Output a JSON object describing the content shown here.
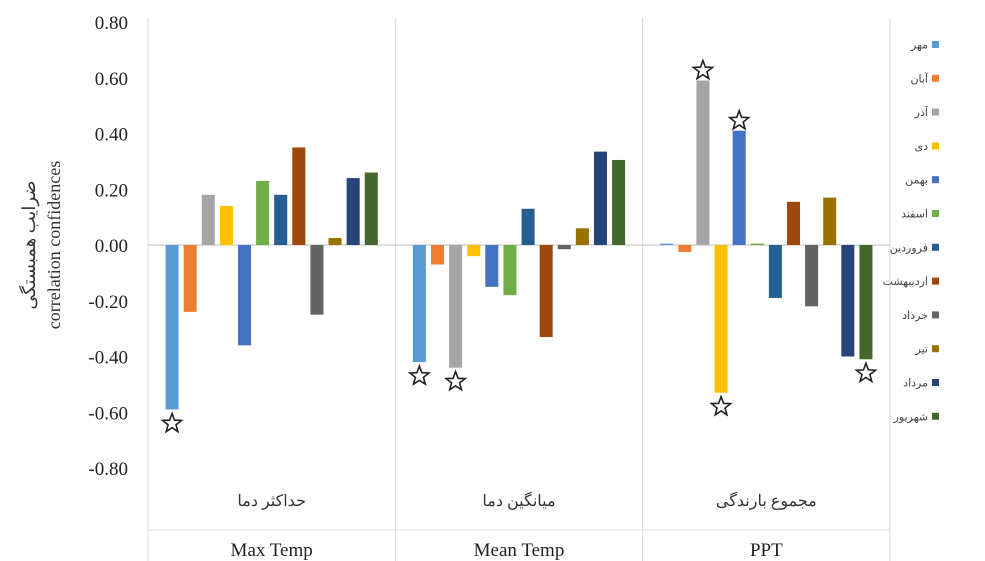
{
  "chart_data": {
    "type": "bar",
    "ylabel_fa": "ضرایب همبستگی",
    "ylabel_en": "correlation confidences",
    "ylim": [
      -0.8,
      0.8
    ],
    "yticks": [
      "0.80",
      "0.60",
      "0.40",
      "0.20",
      "0.00",
      "-0.20",
      "-0.40",
      "-0.60",
      "-0.80"
    ],
    "grid": "vertical separators",
    "legend_position": "right",
    "groups": [
      {
        "label_fa": "حداکثر دما",
        "label_en": "Max Temp"
      },
      {
        "label_fa": "میانگین دما",
        "label_en": "Mean Temp"
      },
      {
        "label_fa": "مجموع بارندگی",
        "label_en": "PPT"
      }
    ],
    "series": [
      {
        "name": "مهر",
        "color": "#5B9BD5",
        "values": [
          -0.59,
          -0.42,
          0.005
        ]
      },
      {
        "name": "آبان",
        "color": "#ED7D31",
        "values": [
          -0.24,
          -0.07,
          -0.025
        ]
      },
      {
        "name": "آذر",
        "color": "#A5A5A5",
        "values": [
          0.18,
          -0.44,
          0.59
        ]
      },
      {
        "name": "دی",
        "color": "#FFC000",
        "values": [
          0.14,
          -0.04,
          -0.53
        ]
      },
      {
        "name": "بهمن",
        "color": "#4472C4",
        "values": [
          -0.36,
          -0.15,
          0.41
        ]
      },
      {
        "name": "اسفند",
        "color": "#70AD47",
        "values": [
          0.23,
          -0.18,
          0.005
        ]
      },
      {
        "name": "فروردین",
        "color": "#255E91",
        "values": [
          0.18,
          0.13,
          -0.19
        ]
      },
      {
        "name": "اردیبهشت",
        "color": "#9E480E",
        "values": [
          0.35,
          -0.33,
          0.155
        ]
      },
      {
        "name": "خرداد",
        "color": "#636363",
        "values": [
          -0.25,
          -0.015,
          -0.22
        ]
      },
      {
        "name": "تیر",
        "color": "#997300",
        "values": [
          0.025,
          0.06,
          0.17
        ]
      },
      {
        "name": "مرداد",
        "color": "#264478",
        "values": [
          0.24,
          0.335,
          -0.4
        ]
      },
      {
        "name": "شهریور",
        "color": "#43682B",
        "values": [
          0.26,
          0.305,
          -0.41
        ]
      }
    ],
    "significant_markers": [
      {
        "group": 0,
        "series": 0
      },
      {
        "group": 1,
        "series": 0
      },
      {
        "group": 1,
        "series": 2
      },
      {
        "group": 2,
        "series": 2
      },
      {
        "group": 2,
        "series": 3
      },
      {
        "group": 2,
        "series": 4
      },
      {
        "group": 2,
        "series": 11
      }
    ]
  }
}
